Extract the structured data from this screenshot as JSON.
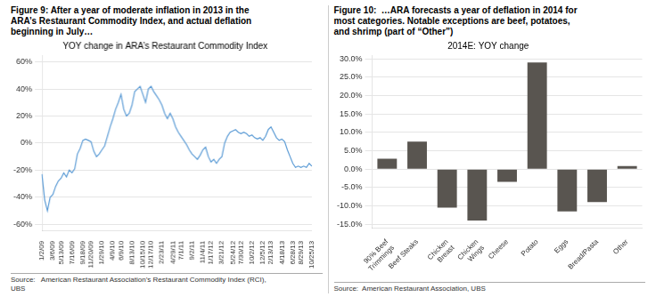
{
  "chart_data": [
    {
      "type": "line",
      "title": "Figure 9: After a year of moderate inflation in 2013 in the\nARA’s Restaurant Commodity Index, and actual deflation\nbeginning in July…",
      "subtitle": "YOY change in ARA’s Restaurant Commodity Index",
      "annotations": [
        "Source:   American Restaurant Association’s Restaurant Commodity Index (RCI),\nUBS"
      ],
      "color": "#5b9bd5",
      "categories": [
        "1/2/09",
        null,
        null,
        null,
        "3/6/09",
        null,
        null,
        "5/13/09",
        null,
        null,
        null,
        "7/16/09",
        null,
        null,
        null,
        "9/18/09",
        null,
        null,
        "11/20/09",
        null,
        null,
        null,
        "1/29/10",
        null,
        null,
        null,
        "4/9/10",
        null,
        null,
        "6/9/10",
        null,
        null,
        null,
        "8/13/10",
        null,
        null,
        null,
        "10/15/10",
        null,
        null,
        "12/17/10",
        null,
        null,
        null,
        "2/23/11",
        null,
        null,
        null,
        "4/29/11",
        null,
        null,
        "7/1/11",
        null,
        null,
        null,
        "9/2/11",
        null,
        null,
        null,
        "11/4/11",
        null,
        null,
        "1/17/12",
        null,
        null,
        null,
        "3/21/12",
        null,
        null,
        null,
        "5/24/12",
        null,
        null,
        "7/30/12",
        null,
        null,
        null,
        "10/2/12",
        null,
        null,
        null,
        "12/5/12",
        null,
        null,
        "2/13/13",
        null,
        null,
        null,
        "4/18/13",
        null,
        null,
        null,
        "6/28/13",
        null,
        null,
        "8/29/13",
        null,
        null,
        null,
        "10/25/13"
      ],
      "values": [
        -0.23,
        -0.42,
        -0.5,
        -0.4,
        -0.38,
        -0.32,
        -0.28,
        -0.26,
        -0.22,
        -0.25,
        -0.2,
        -0.22,
        -0.19,
        -0.08,
        -0.04,
        0.02,
        0.03,
        0.02,
        0.01,
        -0.06,
        -0.1,
        -0.08,
        -0.05,
        -0.02,
        0.05,
        0.12,
        0.18,
        0.25,
        0.3,
        0.36,
        0.25,
        0.2,
        0.22,
        0.28,
        0.38,
        0.4,
        0.42,
        0.36,
        0.3,
        0.4,
        0.42,
        0.38,
        0.35,
        0.32,
        0.28,
        0.22,
        0.18,
        0.22,
        0.18,
        0.12,
        0.08,
        0.05,
        0.02,
        -0.01,
        -0.05,
        -0.08,
        -0.1,
        -0.12,
        -0.09,
        -0.05,
        -0.03,
        -0.1,
        -0.14,
        -0.12,
        -0.15,
        -0.12,
        -0.1,
        0.0,
        0.05,
        0.08,
        0.09,
        0.1,
        0.08,
        0.07,
        0.08,
        0.07,
        0.05,
        0.06,
        0.04,
        0.03,
        0.04,
        0.02,
        0.05,
        0.1,
        0.12,
        0.08,
        0.04,
        0.02,
        0.03,
        0.01,
        -0.05,
        -0.1,
        -0.15,
        -0.18,
        -0.17,
        -0.18,
        -0.17,
        -0.18,
        -0.15,
        -0.17
      ],
      "ylim": [
        -0.65,
        0.65
      ],
      "yticks": [
        {
          "value": -0.6,
          "label": "-60%"
        },
        {
          "value": -0.4,
          "label": "-40%"
        },
        {
          "value": -0.2,
          "label": "-20%"
        },
        {
          "value": 0,
          "label": "0%"
        },
        {
          "value": 0.2,
          "label": "20%"
        },
        {
          "value": 0.4,
          "label": "40%"
        },
        {
          "value": 0.6,
          "label": "60%"
        }
      ],
      "grid": true
    },
    {
      "type": "bar",
      "title": "Figure 10:  …ARA forecasts a year of deflation in 2014 for\nmost categories. Notable exceptions are beef, potatoes,\nand shrimp (part of “Other”)",
      "subtitle": "2014E: YOY change",
      "annotations": [
        "Source:  American Restaurant Association, UBS"
      ],
      "color": "#595550",
      "categories": [
        "90% Beef\nTrimmings",
        "Beef Steaks",
        "Chicken\nBreast",
        "Chicken\nWings",
        "Cheese",
        "Potato",
        "Eggs",
        "Bread/Pasta",
        "Other"
      ],
      "values": [
        2.8,
        7.5,
        -10.5,
        -14.0,
        -3.5,
        29.0,
        -11.5,
        -9.0,
        0.8
      ],
      "ylim": [
        -16.0,
        31.0
      ],
      "yticks": [
        {
          "value": -15.0,
          "label": "-15.0%"
        },
        {
          "value": -10.0,
          "label": "-10.0%"
        },
        {
          "value": -5.0,
          "label": "-5.0%"
        },
        {
          "value": 0.0,
          "label": "0.0%"
        },
        {
          "value": 5.0,
          "label": "5.0%"
        },
        {
          "value": 10.0,
          "label": "10.0%"
        },
        {
          "value": 15.0,
          "label": "15.0%"
        },
        {
          "value": 20.0,
          "label": "20.0%"
        },
        {
          "value": 25.0,
          "label": "25.0%"
        },
        {
          "value": 30.0,
          "label": "30.0%"
        }
      ],
      "grid": true
    }
  ]
}
